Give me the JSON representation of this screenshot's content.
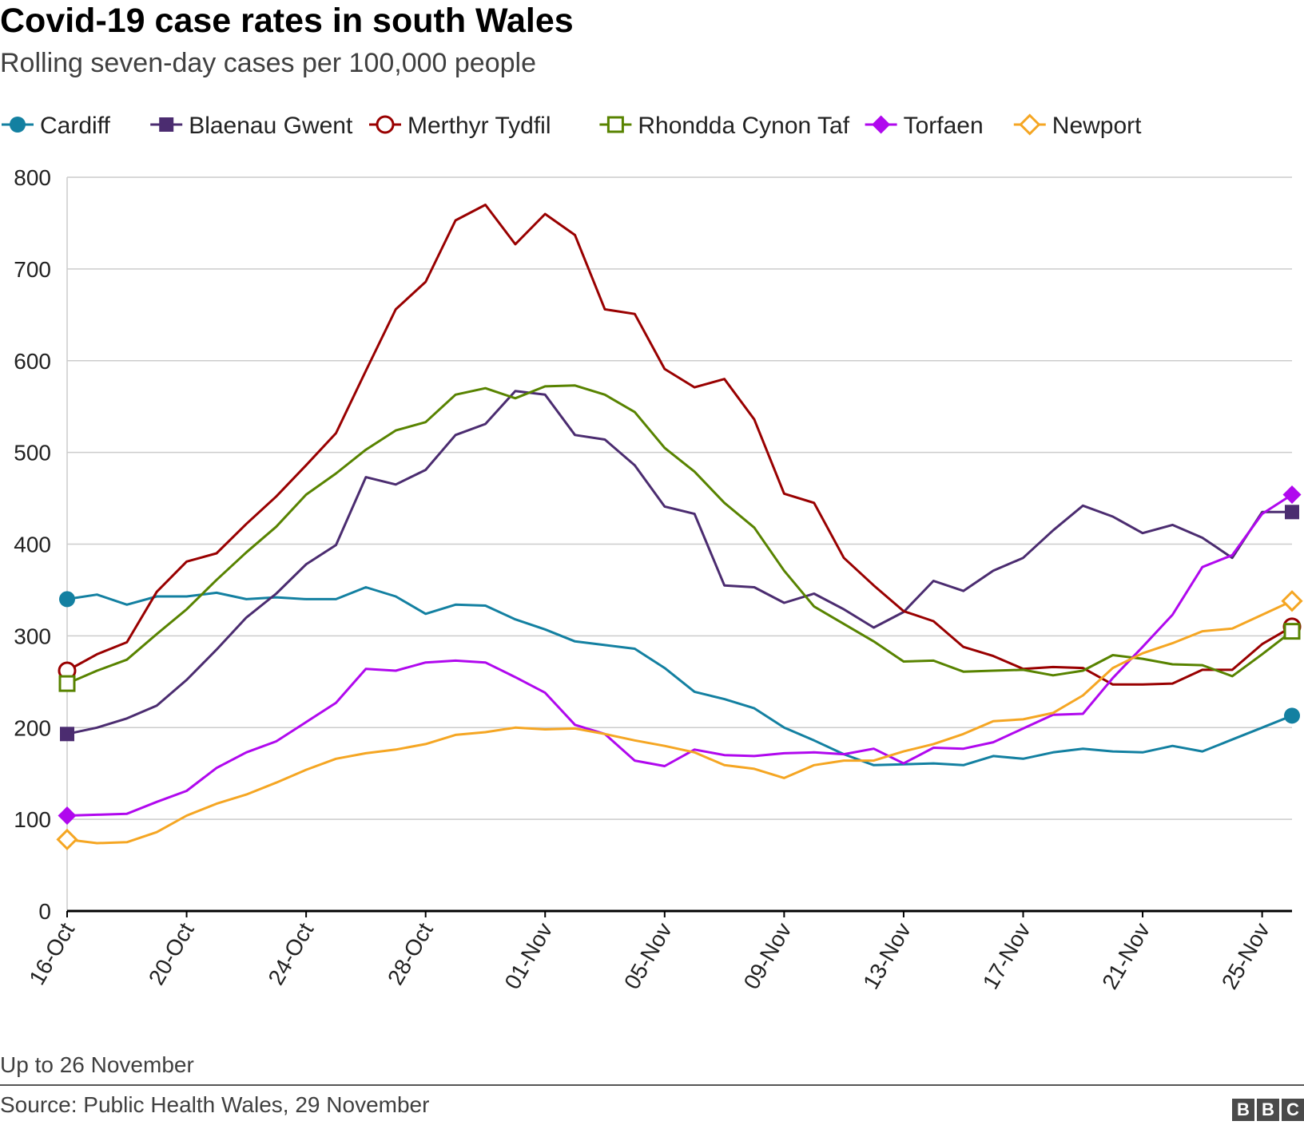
{
  "title": "Covid-19 case rates in south Wales",
  "subtitle": "Rolling seven-day cases per 100,000 people",
  "footnote": "Up to 26 November",
  "source": "Source: Public Health Wales, 29 November",
  "logo": [
    "B",
    "B",
    "C"
  ],
  "chart_data": {
    "type": "line",
    "x": [
      "16-Oct",
      "17-Oct",
      "18-Oct",
      "19-Oct",
      "20-Oct",
      "21-Oct",
      "22-Oct",
      "23-Oct",
      "24-Oct",
      "25-Oct",
      "26-Oct",
      "27-Oct",
      "28-Oct",
      "29-Oct",
      "30-Oct",
      "31-Oct",
      "01-Nov",
      "02-Nov",
      "03-Nov",
      "04-Nov",
      "05-Nov",
      "06-Nov",
      "07-Nov",
      "08-Nov",
      "09-Nov",
      "10-Nov",
      "11-Nov",
      "12-Nov",
      "13-Nov",
      "14-Nov",
      "15-Nov",
      "16-Nov",
      "17-Nov",
      "18-Nov",
      "19-Nov",
      "20-Nov",
      "21-Nov",
      "22-Nov",
      "23-Nov",
      "24-Nov",
      "25-Nov",
      "26-Nov"
    ],
    "tick_labels": [
      "16-Oct",
      "20-Oct",
      "24-Oct",
      "28-Oct",
      "01-Nov",
      "05-Nov",
      "09-Nov",
      "13-Nov",
      "17-Nov",
      "21-Nov",
      "25-Nov"
    ],
    "tick_indices": [
      0,
      4,
      8,
      12,
      16,
      20,
      24,
      28,
      32,
      36,
      40
    ],
    "ylim": [
      0,
      800
    ],
    "yticks": [
      0,
      100,
      200,
      300,
      400,
      500,
      600,
      700,
      800
    ],
    "grid": true,
    "legend_position": "top",
    "series": [
      {
        "name": "Cardiff",
        "color": "#1380a1",
        "marker": "circle-filled",
        "values": [
          340,
          345,
          334,
          343,
          343,
          347,
          340,
          342,
          340,
          340,
          353,
          343,
          324,
          334,
          333,
          318,
          307,
          294,
          290,
          286,
          265,
          239,
          231,
          221,
          200,
          186,
          171,
          159,
          160,
          161,
          159,
          169,
          166,
          173,
          177,
          174,
          173,
          180,
          174,
          187,
          200,
          213
        ]
      },
      {
        "name": "Blaenau Gwent",
        "color": "#4b2c70",
        "marker": "square-filled",
        "values": [
          193,
          200,
          210,
          224,
          252,
          285,
          320,
          346,
          378,
          399,
          473,
          465,
          481,
          519,
          531,
          567,
          563,
          519,
          514,
          486,
          441,
          433,
          355,
          353,
          336,
          346,
          329,
          309,
          326,
          360,
          349,
          371,
          385,
          415,
          442,
          430,
          412,
          421,
          407,
          385,
          435,
          435
        ]
      },
      {
        "name": "Merthyr Tydfil",
        "color": "#990000",
        "marker": "circle-open",
        "values": [
          262,
          280,
          293,
          348,
          381,
          390,
          422,
          452,
          486,
          521,
          589,
          656,
          686,
          753,
          770,
          727,
          760,
          737,
          656,
          651,
          591,
          571,
          580,
          536,
          455,
          445,
          385,
          355,
          327,
          316,
          288,
          278,
          264,
          266,
          265,
          247,
          247,
          248,
          263,
          263,
          291,
          310
        ]
      },
      {
        "name": "Rhondda Cynon Taf",
        "color": "#588300",
        "marker": "square-open",
        "values": [
          248,
          262,
          274,
          302,
          329,
          361,
          391,
          419,
          454,
          477,
          503,
          524,
          533,
          563,
          570,
          559,
          572,
          573,
          563,
          544,
          505,
          479,
          445,
          418,
          371,
          332,
          313,
          294,
          272,
          273,
          261,
          262,
          263,
          257,
          262,
          279,
          275,
          269,
          268,
          256,
          280,
          305
        ]
      },
      {
        "name": "Torfaen",
        "color": "#b008ee",
        "marker": "diamond-filled",
        "values": [
          104,
          105,
          106,
          119,
          131,
          156,
          173,
          185,
          206,
          227,
          264,
          262,
          271,
          273,
          271,
          255,
          238,
          203,
          193,
          164,
          158,
          176,
          170,
          169,
          172,
          173,
          171,
          177,
          161,
          178,
          177,
          184,
          199,
          214,
          215,
          254,
          288,
          323,
          375,
          388,
          433,
          454
        ]
      },
      {
        "name": "Newport",
        "color": "#f5a623",
        "marker": "diamond-open",
        "values": [
          78,
          74,
          75,
          86,
          104,
          117,
          127,
          140,
          154,
          166,
          172,
          176,
          182,
          192,
          195,
          200,
          198,
          199,
          193,
          186,
          180,
          173,
          159,
          155,
          145,
          159,
          164,
          164,
          174,
          182,
          193,
          207,
          209,
          216,
          235,
          265,
          281,
          292,
          305,
          308,
          323,
          338
        ]
      }
    ]
  }
}
